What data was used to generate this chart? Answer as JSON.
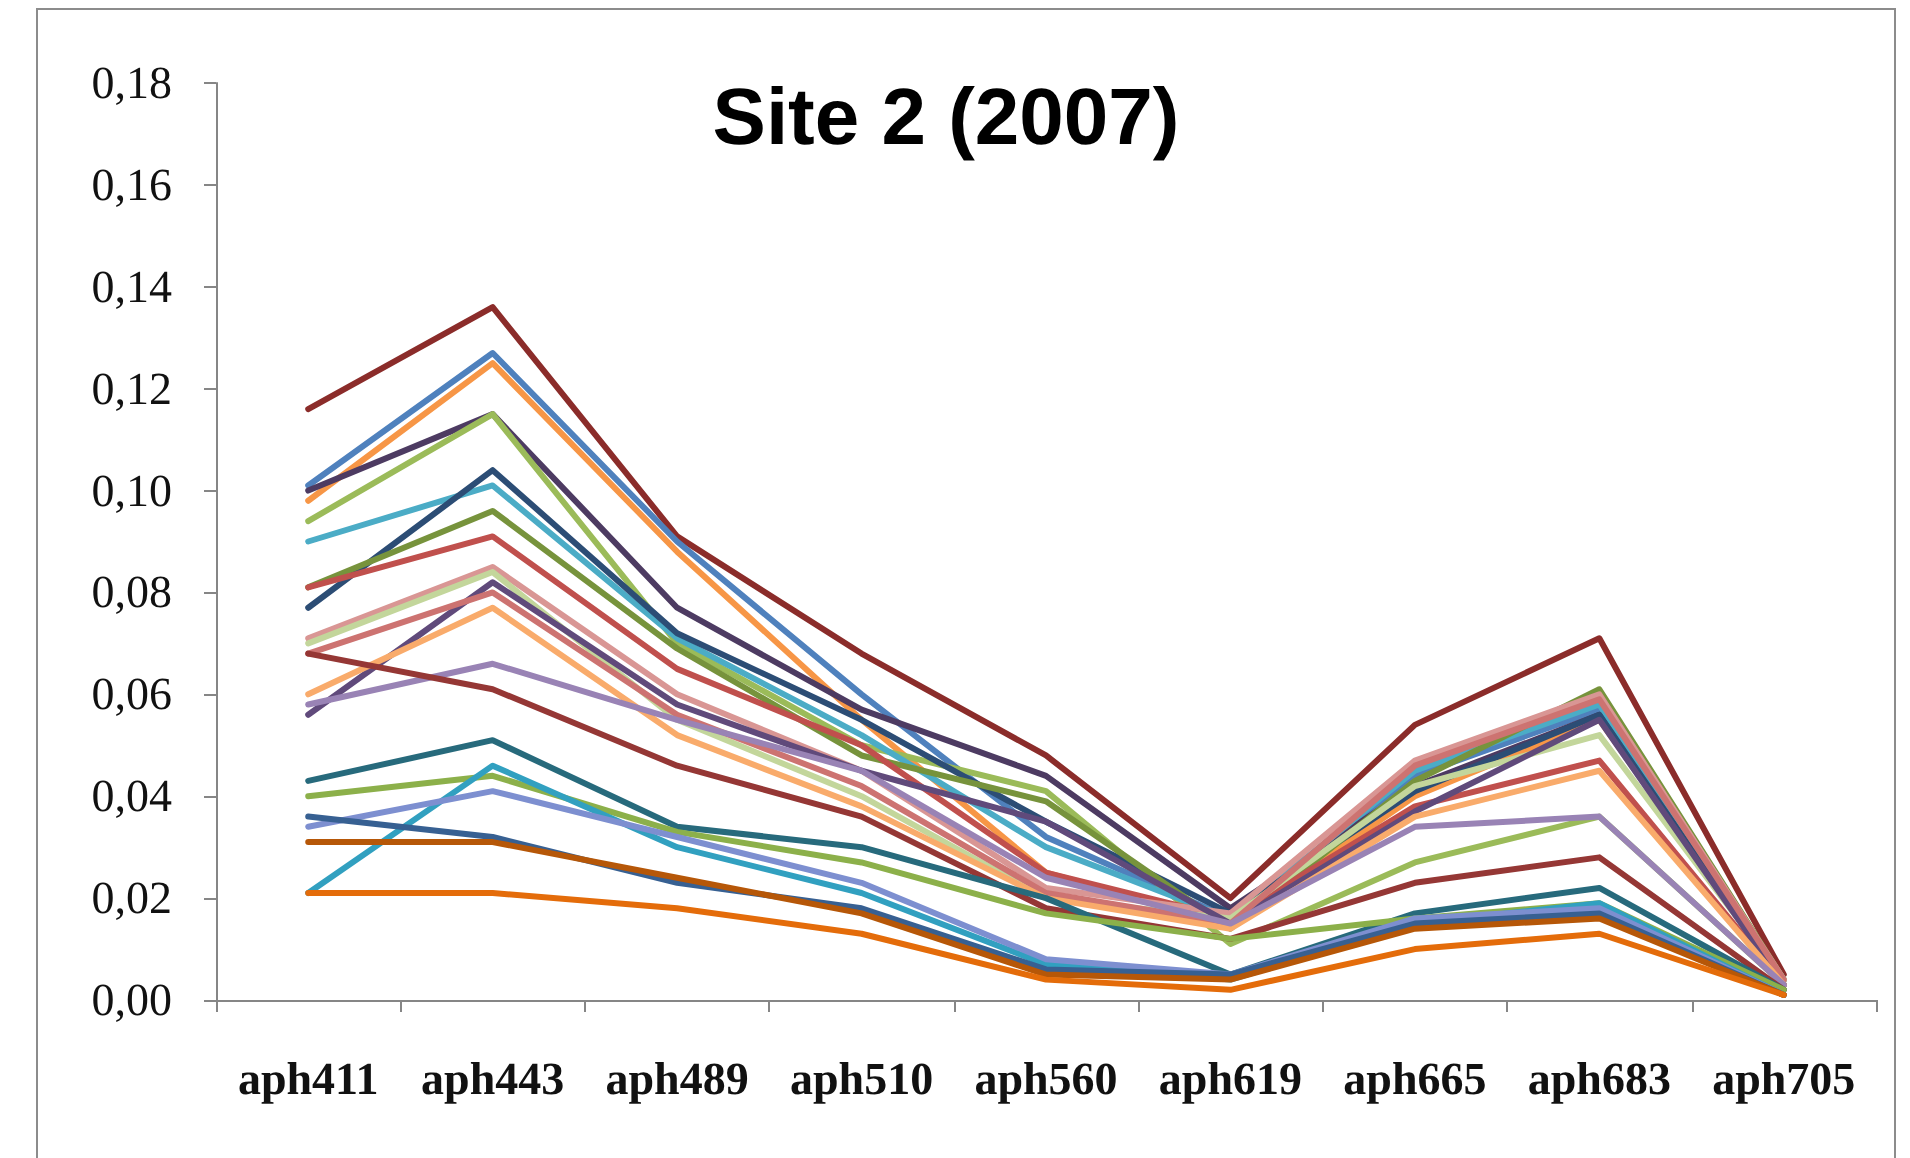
{
  "chart_data": {
    "type": "line",
    "title": "Site 2 (2007)",
    "categories": [
      "aph411",
      "aph443",
      "aph489",
      "aph510",
      "aph560",
      "aph619",
      "aph665",
      "aph683",
      "aph705"
    ],
    "ylim": [
      0,
      0.18
    ],
    "yticks": [
      {
        "value": 0,
        "label": "0,00"
      },
      {
        "value": 0.02,
        "label": "0,02"
      },
      {
        "value": 0.04,
        "label": "0,04"
      },
      {
        "value": 0.06,
        "label": "0,06"
      },
      {
        "value": 0.08,
        "label": "0,08"
      },
      {
        "value": 0.1,
        "label": "0,10"
      },
      {
        "value": 0.12,
        "label": "0,12"
      },
      {
        "value": 0.14,
        "label": "0,14"
      },
      {
        "value": 0.16,
        "label": "0,16"
      },
      {
        "value": 0.18,
        "label": "0,18"
      }
    ],
    "series": [
      {
        "color": "#8b2c2a",
        "values": [
          0.116,
          0.136,
          0.091,
          0.068,
          0.048,
          0.02,
          0.054,
          0.071,
          0.005
        ]
      },
      {
        "color": "#4f81bd",
        "values": [
          0.101,
          0.127,
          0.09,
          0.06,
          0.032,
          0.016,
          0.044,
          0.057,
          0.004
        ]
      },
      {
        "color": "#f79646",
        "values": [
          0.098,
          0.125,
          0.088,
          0.055,
          0.025,
          0.015,
          0.04,
          0.055,
          0.004
        ]
      },
      {
        "color": "#4d3b62",
        "values": [
          0.1,
          0.115,
          0.077,
          0.057,
          0.044,
          0.018,
          0.042,
          0.056,
          0.004
        ]
      },
      {
        "color": "#9bbb59",
        "values": [
          0.094,
          0.115,
          0.07,
          0.05,
          0.041,
          0.011,
          0.027,
          0.036,
          0.003
        ]
      },
      {
        "color": "#4bacc6",
        "values": [
          0.09,
          0.101,
          0.071,
          0.052,
          0.03,
          0.016,
          0.045,
          0.058,
          0.004
        ]
      },
      {
        "color": "#2c4d75",
        "values": [
          0.077,
          0.104,
          0.072,
          0.055,
          0.035,
          0.017,
          0.041,
          0.056,
          0.003
        ]
      },
      {
        "color": "#77933c",
        "values": [
          0.081,
          0.096,
          0.069,
          0.048,
          0.039,
          0.014,
          0.043,
          0.061,
          0.004
        ]
      },
      {
        "color": "#c0504d",
        "values": [
          0.081,
          0.091,
          0.065,
          0.05,
          0.025,
          0.016,
          0.038,
          0.047,
          0.003
        ]
      },
      {
        "color": "#d99694",
        "values": [
          0.071,
          0.085,
          0.06,
          0.045,
          0.022,
          0.017,
          0.047,
          0.06,
          0.004
        ]
      },
      {
        "color": "#c3d69b",
        "values": [
          0.07,
          0.084,
          0.055,
          0.04,
          0.02,
          0.016,
          0.042,
          0.052,
          0.004
        ]
      },
      {
        "color": "#604a7b",
        "values": [
          0.056,
          0.082,
          0.058,
          0.045,
          0.035,
          0.015,
          0.037,
          0.055,
          0.003
        ]
      },
      {
        "color": "#cd7371",
        "values": [
          0.068,
          0.08,
          0.056,
          0.042,
          0.021,
          0.015,
          0.046,
          0.059,
          0.004
        ]
      },
      {
        "color": "#f9ab6b",
        "values": [
          0.06,
          0.077,
          0.052,
          0.038,
          0.02,
          0.014,
          0.036,
          0.045,
          0.003
        ]
      },
      {
        "color": "#9983b5",
        "values": [
          0.058,
          0.066,
          0.055,
          0.045,
          0.024,
          0.015,
          0.034,
          0.036,
          0.003
        ]
      },
      {
        "color": "#953735",
        "values": [
          0.068,
          0.061,
          0.046,
          0.036,
          0.018,
          0.012,
          0.023,
          0.028,
          0.002
        ]
      },
      {
        "color": "#276a7c",
        "values": [
          0.043,
          0.051,
          0.034,
          0.03,
          0.02,
          0.005,
          0.017,
          0.022,
          0.002
        ]
      },
      {
        "color": "#8cb04a",
        "values": [
          0.04,
          0.044,
          0.033,
          0.027,
          0.017,
          0.012,
          0.016,
          0.019,
          0.002
        ]
      },
      {
        "color": "#31a0c0",
        "values": [
          0.021,
          0.046,
          0.03,
          0.021,
          0.007,
          0.004,
          0.015,
          0.019,
          0.001
        ]
      },
      {
        "color": "#7d8fd0",
        "values": [
          0.034,
          0.041,
          0.032,
          0.023,
          0.008,
          0.005,
          0.016,
          0.018,
          0.001
        ]
      },
      {
        "color": "#376092",
        "values": [
          0.036,
          0.032,
          0.023,
          0.018,
          0.006,
          0.005,
          0.015,
          0.017,
          0.001
        ]
      },
      {
        "color": "#b65708",
        "values": [
          0.031,
          0.031,
          0.024,
          0.017,
          0.005,
          0.004,
          0.014,
          0.016,
          0.001
        ]
      },
      {
        "color": "#e46c0a",
        "values": [
          0.021,
          0.021,
          0.018,
          0.013,
          0.004,
          0.002,
          0.01,
          0.013,
          0.001
        ]
      }
    ]
  }
}
